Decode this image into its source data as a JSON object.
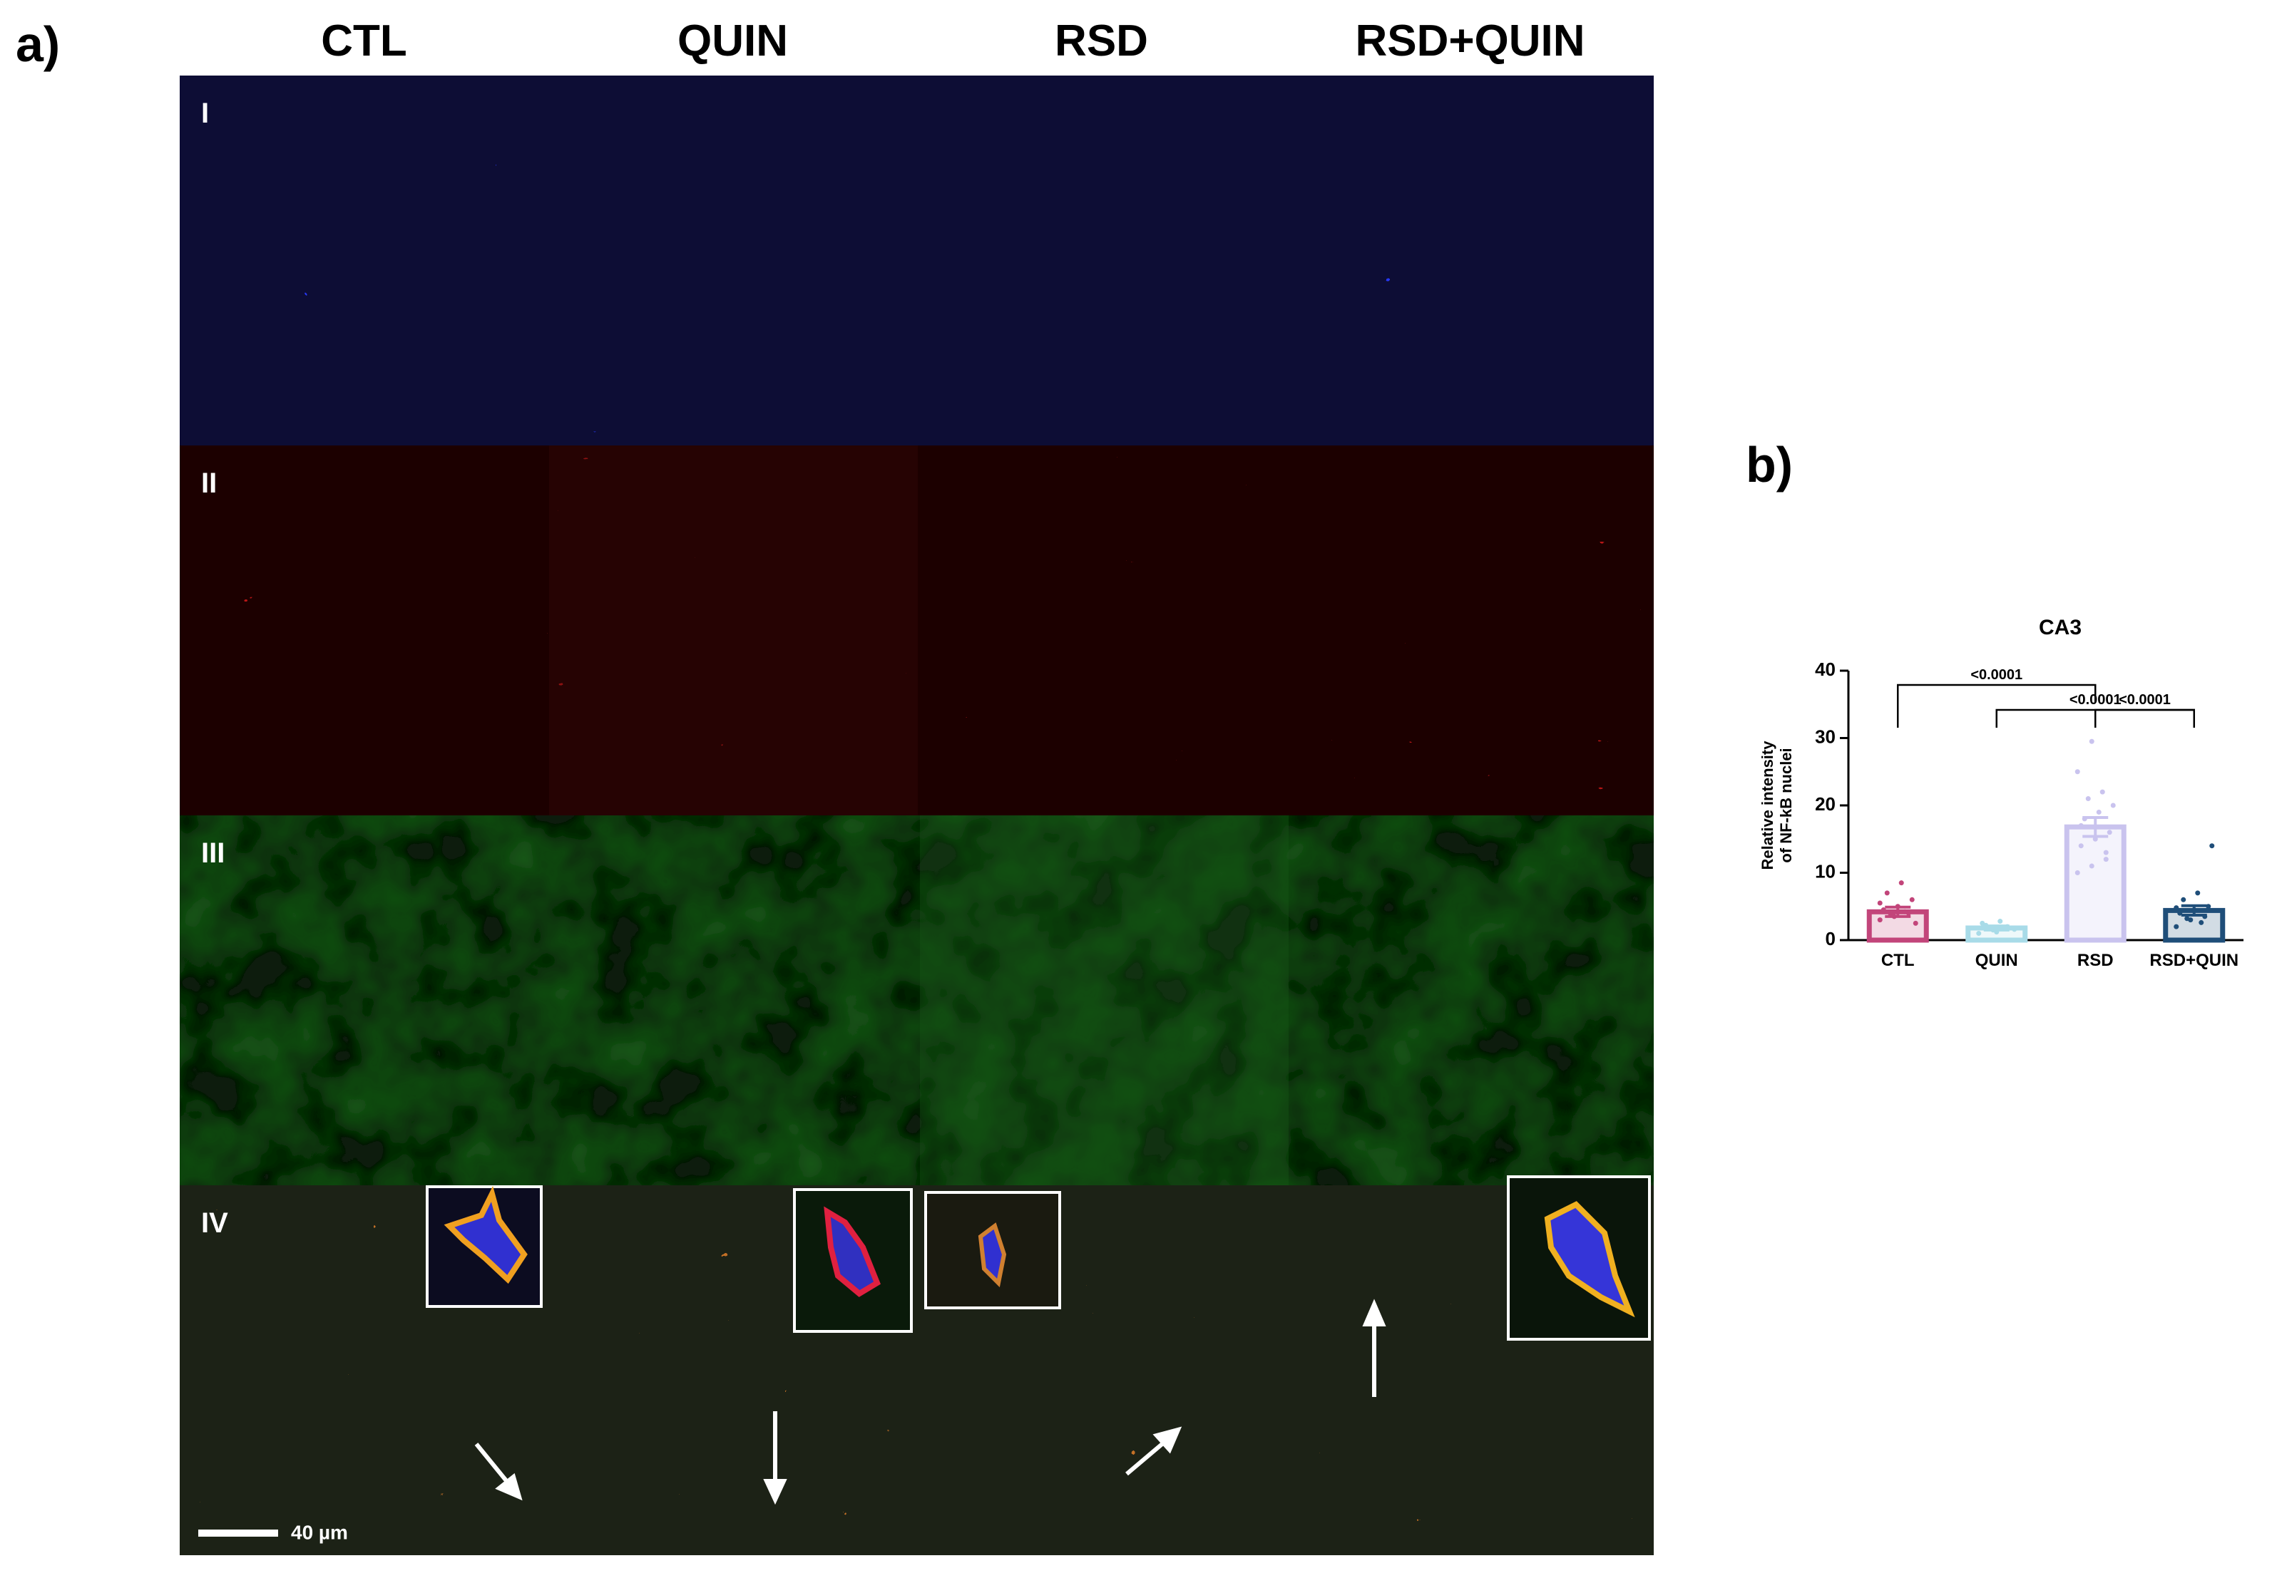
{
  "panel_a": {
    "label": "a)",
    "columns": [
      "CTL",
      "QUIN",
      "RSD",
      "RSD+QUIN"
    ],
    "rows": [
      "I",
      "II",
      "III",
      "IV"
    ],
    "scale_bar": "40 µm"
  },
  "chart_data": {
    "type": "bar",
    "label": "b)",
    "title": "CA3",
    "y_label": [
      "Relative intensity",
      "of NF-kB nuclei"
    ],
    "categories": [
      "CTL",
      "QUIN",
      "RSD",
      "RSD+QUIN"
    ],
    "values": [
      4.2,
      1.8,
      16.8,
      4.4
    ],
    "errors": [
      0.7,
      0.3,
      1.4,
      0.7
    ],
    "colors": [
      "#c2457a",
      "#a8dbe8",
      "#c9c3ee",
      "#1f4e79"
    ],
    "points": [
      [
        3,
        3.5,
        4,
        4.5,
        5,
        6,
        7,
        8.5,
        2.5,
        3.8,
        4.2,
        5.5
      ],
      [
        1,
        1.5,
        2,
        2.5,
        1.2,
        1.8,
        2.2,
        2.8,
        1.6
      ],
      [
        10,
        11,
        12,
        14,
        15,
        16,
        18,
        19,
        20,
        21,
        22,
        25,
        29.5,
        13,
        17
      ],
      [
        2,
        3,
        3.5,
        4,
        4.5,
        5,
        6,
        7,
        14,
        3.2,
        2.6,
        4.8
      ]
    ],
    "ylim": [
      0,
      40
    ],
    "yticks": [
      0,
      10,
      20,
      30,
      40
    ],
    "comparisons": [
      {
        "pair": [
          0,
          2
        ],
        "label": "<0.0001"
      },
      {
        "pair": [
          1,
          3
        ],
        "label": "<0.0001"
      },
      {
        "pair": [
          2,
          3
        ],
        "label": "<0.0001"
      }
    ]
  }
}
